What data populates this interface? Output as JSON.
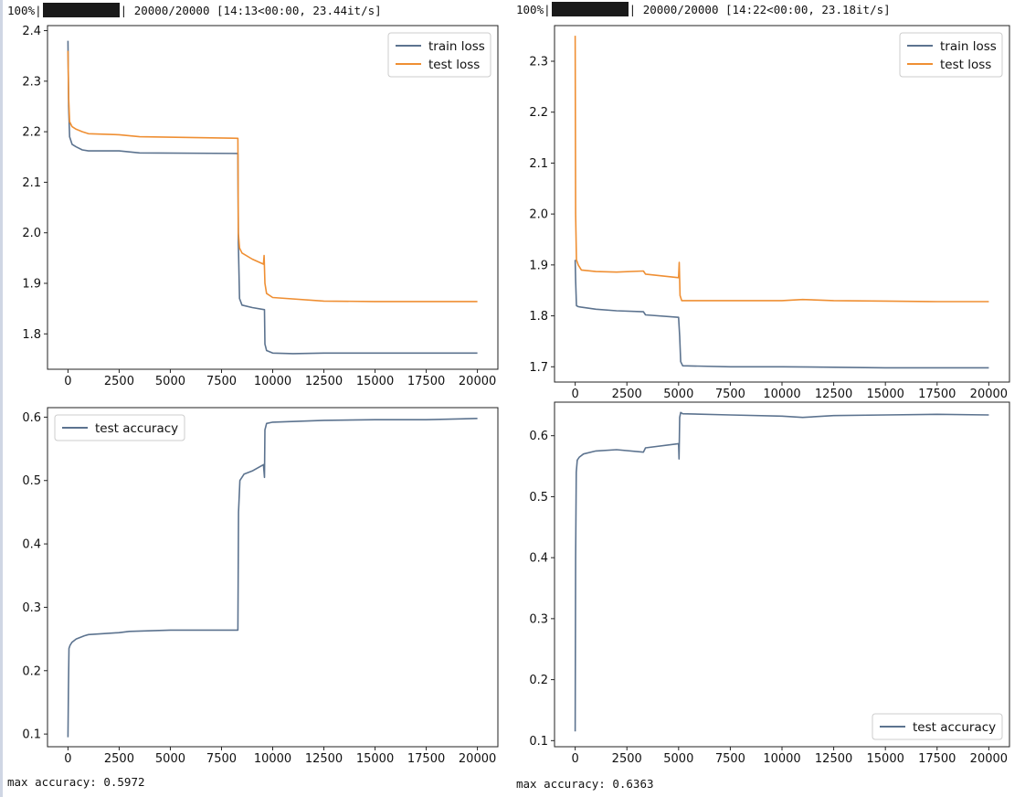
{
  "runs": [
    {
      "progress": {
        "percent": "100%",
        "counts": "20000/20000",
        "timing": "[14:13<00:00, 23.44it/s]"
      },
      "max_accuracy_label": "max accuracy: 0.5972"
    },
    {
      "progress": {
        "percent": "100%",
        "counts": "20000/20000",
        "timing": "[14:22<00:00, 23.18it/s]"
      },
      "max_accuracy_label": "max accuracy: 0.6363"
    }
  ],
  "colors": {
    "train": "#5c738f",
    "test": "#ef8f33",
    "accuracy": "#5c738f"
  },
  "chart_data": [
    {
      "type": "line",
      "xlim": [
        -1000,
        21000
      ],
      "ylim": [
        1.73,
        2.41
      ],
      "xticks": [
        0,
        2500,
        5000,
        7500,
        10000,
        12500,
        15000,
        17500,
        20000
      ],
      "yticks": [
        1.8,
        1.9,
        2.0,
        2.1,
        2.2,
        2.3,
        2.4
      ],
      "legend_position": "top-right",
      "series": [
        {
          "name": "train loss",
          "color": "#5c738f",
          "x": [
            0,
            30,
            80,
            200,
            400,
            700,
            1000,
            2500,
            3500,
            8300,
            8320,
            8380,
            8500,
            9000,
            9600,
            9620,
            9700,
            10000,
            11000,
            12500,
            15000,
            17500,
            20000
          ],
          "y": [
            2.38,
            2.25,
            2.19,
            2.175,
            2.17,
            2.164,
            2.162,
            2.162,
            2.158,
            2.157,
            1.98,
            1.87,
            1.857,
            1.852,
            1.848,
            1.78,
            1.767,
            1.762,
            1.761,
            1.762,
            1.762,
            1.762,
            1.762
          ]
        },
        {
          "name": "test loss",
          "color": "#ef8f33",
          "x": [
            0,
            30,
            80,
            200,
            400,
            700,
            1000,
            2500,
            3500,
            8300,
            8320,
            8380,
            8500,
            9000,
            9550,
            9580,
            9620,
            9700,
            10000,
            12500,
            15000,
            17500,
            20000
          ],
          "y": [
            2.36,
            2.27,
            2.22,
            2.21,
            2.205,
            2.2,
            2.196,
            2.194,
            2.19,
            2.187,
            2.0,
            1.97,
            1.96,
            1.948,
            1.938,
            1.955,
            1.9,
            1.88,
            1.872,
            1.865,
            1.864,
            1.864,
            1.864
          ]
        }
      ]
    },
    {
      "type": "line",
      "xlim": [
        -1000,
        21000
      ],
      "ylim": [
        1.67,
        2.37
      ],
      "xticks": [
        0,
        2500,
        5000,
        7500,
        10000,
        12500,
        15000,
        17500,
        20000
      ],
      "yticks": [
        1.7,
        1.8,
        1.9,
        2.0,
        2.1,
        2.2,
        2.3
      ],
      "legend_position": "top-right",
      "series": [
        {
          "name": "train loss",
          "color": "#5c738f",
          "x": [
            0,
            20,
            60,
            150,
            300,
            1000,
            2000,
            3300,
            3400,
            5000,
            5050,
            5100,
            5200,
            7500,
            10000,
            12500,
            15000,
            17500,
            20000
          ],
          "y": [
            1.91,
            1.87,
            1.82,
            1.818,
            1.817,
            1.813,
            1.81,
            1.808,
            1.802,
            1.797,
            1.76,
            1.71,
            1.702,
            1.7,
            1.7,
            1.699,
            1.698,
            1.698,
            1.698
          ]
        },
        {
          "name": "test loss",
          "color": "#ef8f33",
          "x": [
            0,
            20,
            60,
            150,
            300,
            1000,
            2000,
            3300,
            3400,
            5000,
            5030,
            5070,
            5150,
            7500,
            10000,
            11000,
            12500,
            15000,
            17500,
            20000
          ],
          "y": [
            2.35,
            2.0,
            1.91,
            1.9,
            1.89,
            1.887,
            1.886,
            1.888,
            1.882,
            1.875,
            1.905,
            1.84,
            1.83,
            1.83,
            1.83,
            1.832,
            1.83,
            1.829,
            1.828,
            1.828
          ]
        }
      ]
    },
    {
      "type": "line",
      "xlim": [
        -1000,
        21000
      ],
      "ylim": [
        0.08,
        0.615
      ],
      "xticks": [
        0,
        2500,
        5000,
        7500,
        10000,
        12500,
        15000,
        17500,
        20000
      ],
      "yticks": [
        0.1,
        0.2,
        0.3,
        0.4,
        0.5,
        0.6
      ],
      "legend_position": "top-left",
      "series": [
        {
          "name": "test accuracy",
          "color": "#5c738f",
          "x": [
            0,
            20,
            50,
            100,
            200,
            400,
            800,
            1000,
            2500,
            3000,
            5000,
            8300,
            8330,
            8400,
            8600,
            9000,
            9550,
            9600,
            9620,
            9700,
            10000,
            12500,
            15000,
            17500,
            20000
          ],
          "y": [
            0.095,
            0.17,
            0.235,
            0.24,
            0.245,
            0.25,
            0.255,
            0.257,
            0.26,
            0.262,
            0.264,
            0.264,
            0.45,
            0.5,
            0.51,
            0.515,
            0.525,
            0.505,
            0.58,
            0.59,
            0.592,
            0.595,
            0.596,
            0.596,
            0.598
          ]
        }
      ]
    },
    {
      "type": "line",
      "xlim": [
        -1000,
        21000
      ],
      "ylim": [
        0.09,
        0.655
      ],
      "xticks": [
        0,
        2500,
        5000,
        7500,
        10000,
        12500,
        15000,
        17500,
        20000
      ],
      "yticks": [
        0.1,
        0.2,
        0.3,
        0.4,
        0.5,
        0.6
      ],
      "legend_position": "bottom-right",
      "series": [
        {
          "name": "test accuracy",
          "color": "#5c738f",
          "x": [
            0,
            20,
            50,
            100,
            200,
            400,
            1000,
            2000,
            3300,
            3400,
            5000,
            5020,
            5050,
            5100,
            5200,
            7500,
            10000,
            11000,
            12500,
            15000,
            17500,
            20000
          ],
          "y": [
            0.115,
            0.4,
            0.54,
            0.56,
            0.565,
            0.57,
            0.575,
            0.577,
            0.573,
            0.58,
            0.587,
            0.562,
            0.63,
            0.638,
            0.636,
            0.634,
            0.632,
            0.63,
            0.633,
            0.634,
            0.635,
            0.634
          ]
        }
      ]
    }
  ]
}
